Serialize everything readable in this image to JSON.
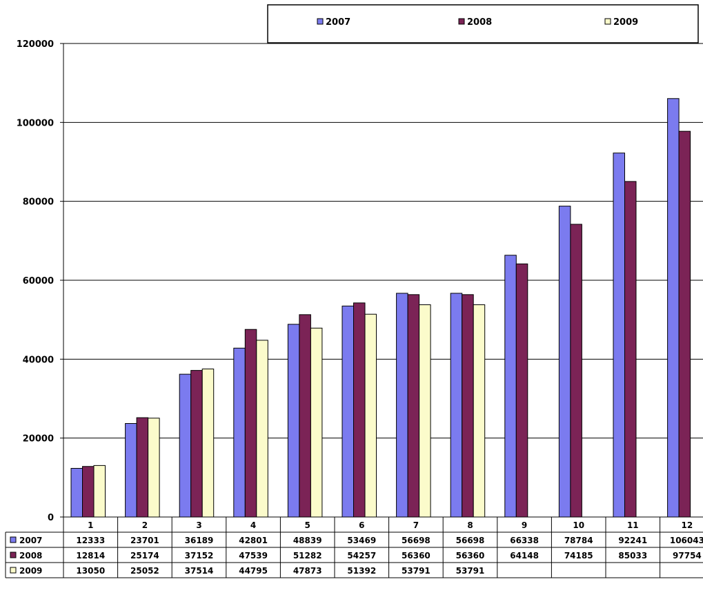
{
  "chart_data": {
    "type": "bar",
    "categories": [
      "1",
      "2",
      "3",
      "4",
      "5",
      "6",
      "7",
      "8",
      "9",
      "10",
      "11",
      "12"
    ],
    "series": [
      {
        "name": "2007",
        "color": "#7b7bef",
        "values": [
          12333,
          23701,
          36189,
          42801,
          48839,
          53469,
          56698,
          56698,
          66338,
          78784,
          92241,
          106043
        ],
        "labels": [
          "12333",
          "23701",
          "36189",
          "42801",
          "48839",
          "53469",
          "56698",
          "56698",
          "66338",
          "78784",
          "92241",
          "106043"
        ]
      },
      {
        "name": "2008",
        "color": "#7b2356",
        "values": [
          12814,
          25174,
          37152,
          47539,
          51282,
          54257,
          56360,
          56360,
          64148,
          74185,
          85033,
          97754
        ],
        "labels": [
          "12814",
          "25174",
          "37152",
          "47539",
          "51282",
          "54257",
          "56360",
          "56360",
          "64148",
          "74185",
          "85033",
          "97754"
        ]
      },
      {
        "name": "2009",
        "color": "#fbfbcb",
        "values": [
          13050,
          25052,
          37514,
          44795,
          47873,
          51392,
          53791,
          53791,
          null,
          null,
          null,
          null
        ],
        "labels": [
          "13050",
          "25052",
          "37514",
          "44795",
          "47873",
          "51392",
          "53791",
          "53791",
          "",
          "",
          "",
          ""
        ]
      }
    ],
    "ylim": [
      0,
      120000
    ],
    "yticks": [
      "0",
      "20000",
      "40000",
      "60000",
      "80000",
      "100000",
      "120000"
    ],
    "grid": true,
    "legend": "top",
    "data_table": true
  }
}
